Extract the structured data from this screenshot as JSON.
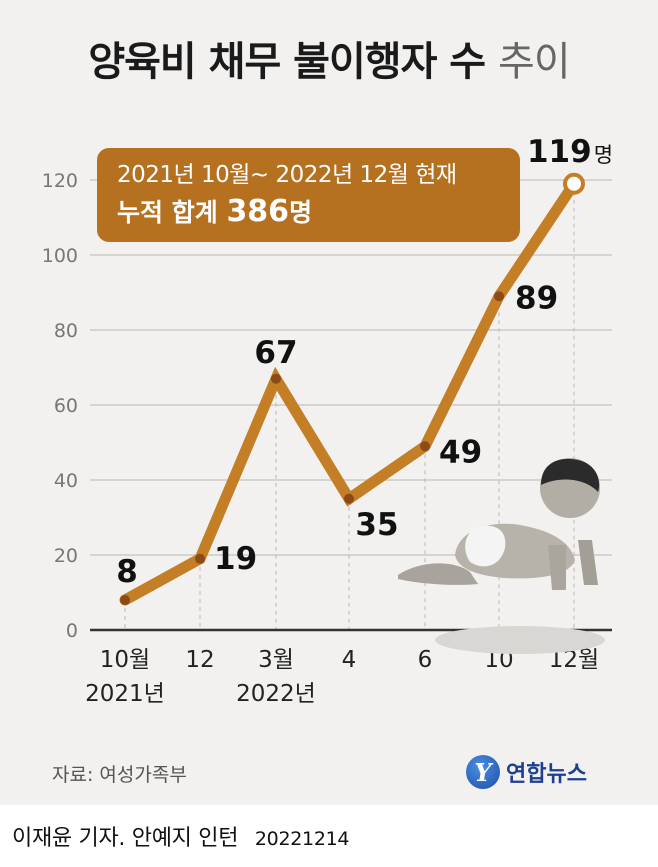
{
  "title": {
    "main": "양육비 채무 불이행자 수",
    "sub": "추이"
  },
  "summary": {
    "period": "2021년 10월~ 2022년 12월 현재",
    "total_label": "누적 합계",
    "total_value": "386",
    "total_unit": "명"
  },
  "chart_data": {
    "type": "line",
    "title": "양육비 채무 불이행자 수 추이",
    "categories": [
      "10월",
      "12",
      "3월",
      "4",
      "6",
      "10",
      "12월"
    ],
    "year_labels": [
      "2021년",
      "",
      "2022년",
      "",
      "",
      "",
      ""
    ],
    "values": [
      8,
      19,
      67,
      35,
      49,
      89,
      119
    ],
    "value_labels": [
      "8",
      "19",
      "67",
      "35",
      "49",
      "89",
      "119"
    ],
    "last_value_unit": "명",
    "ylim": [
      0,
      120
    ],
    "yticks": [
      0,
      20,
      40,
      60,
      80,
      100,
      120
    ],
    "grid": true,
    "line_color": "#c47e26",
    "marker_color": "#8c4a16",
    "last_marker_fill": "#ffffff"
  },
  "source": "자료: 여성가족부",
  "logo": {
    "mark": "Y",
    "text": "연합뉴스"
  },
  "credit": {
    "names": "이재윤 기자. 안예지 인턴",
    "date": "20221214"
  }
}
